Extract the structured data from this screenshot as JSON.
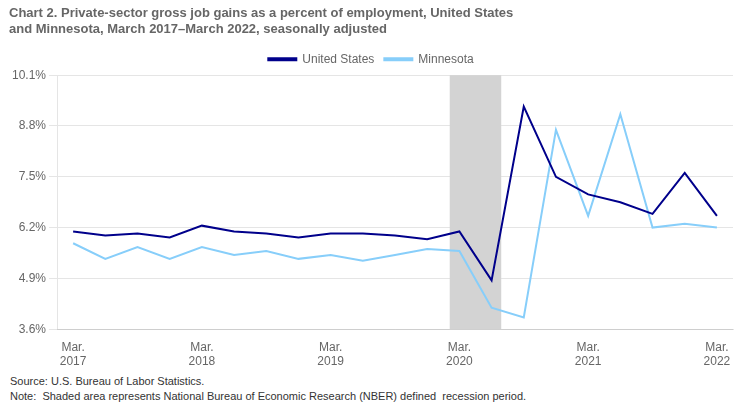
{
  "chart_data": {
    "type": "line",
    "title": "Chart 2. Private-sector gross job gains as a percent of employment, United States\nand Minnesota, March 2017–March 2022, seasonally adjusted",
    "source": "Source: U.S. Bureau of Labor Statistics.",
    "note": "Note:  Shaded area represents National Bureau of Economic Research (NBER) defined  recession period.",
    "categories": [
      "Mar.\n2017",
      null,
      null,
      null,
      "Mar.\n2018",
      null,
      null,
      null,
      "Mar.\n2019",
      null,
      null,
      null,
      "Mar.\n2020",
      null,
      null,
      null,
      "Mar.\n2021",
      null,
      null,
      null,
      "Mar.\n2022"
    ],
    "xlim": [
      -0.5,
      20.5
    ],
    "series": [
      {
        "name": "United States",
        "color": "#00008B",
        "values": [
          6.1,
          6.0,
          6.05,
          5.95,
          6.25,
          6.1,
          6.05,
          5.95,
          6.05,
          6.05,
          6.0,
          5.9,
          6.1,
          4.85,
          9.3,
          7.5,
          7.05,
          6.85,
          6.55,
          7.6,
          6.5
        ]
      },
      {
        "name": "Minnesota",
        "color": "#87CEFA",
        "values": [
          5.8,
          5.4,
          5.7,
          5.4,
          5.7,
          5.5,
          5.6,
          5.4,
          5.5,
          5.35,
          5.5,
          5.65,
          5.6,
          4.15,
          3.9,
          8.7,
          6.5,
          9.1,
          6.2,
          6.3,
          6.2
        ]
      }
    ],
    "ylim": [
      3.6,
      10.1
    ],
    "yticks": [
      {
        "value": 3.6,
        "label": "3.6%"
      },
      {
        "value": 4.9,
        "label": "4.9%"
      },
      {
        "value": 6.2,
        "label": "6.2%"
      },
      {
        "value": 7.5,
        "label": "7.5%"
      },
      {
        "value": 8.8,
        "label": "8.8%"
      },
      {
        "value": 10.1,
        "label": "10.1%"
      }
    ],
    "recession": {
      "start": 11.7,
      "end": 13.3,
      "color": "#d3d3d3"
    },
    "grid": "y",
    "legend": "top"
  }
}
